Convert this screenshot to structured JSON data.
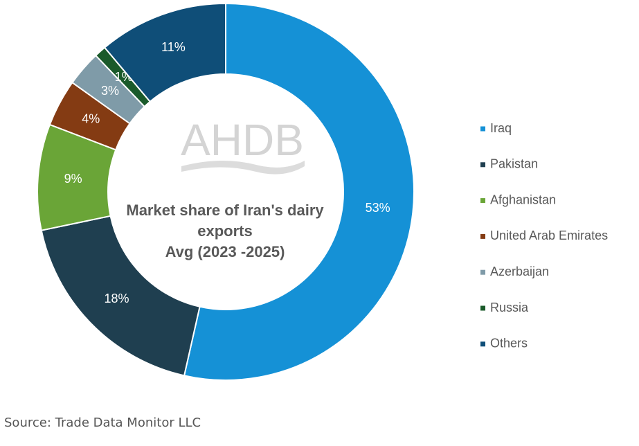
{
  "chart_data": {
    "type": "pie",
    "title": "Market share of Iran's dairy exports",
    "subtitle": "Avg (2023 -2025)",
    "watermark": "AHDB",
    "categories": [
      "Iraq",
      "Pakistan",
      "Afghanistan",
      "United Arab Emirates",
      "Azerbaijan",
      "Russia",
      "Others"
    ],
    "values": [
      53,
      18,
      9,
      4,
      3,
      1,
      11
    ],
    "value_labels": [
      "53%",
      "18%",
      "9%",
      "4%",
      "3%",
      "1%",
      "11%"
    ],
    "colors": [
      "#1591d6",
      "#1f3f50",
      "#6aa537",
      "#843b13",
      "#7f9ba8",
      "#1a5a2a",
      "#0f4e78"
    ],
    "legend": "right",
    "source": "Source: Trade Data Monitor LLC"
  }
}
